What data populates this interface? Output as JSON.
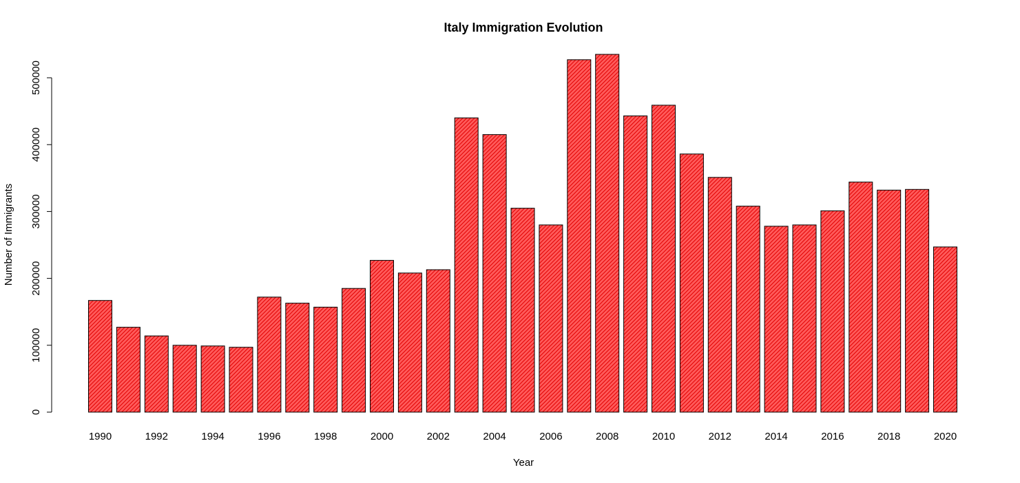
{
  "chart_data": {
    "type": "bar",
    "title": "Italy Immigration Evolution",
    "xlabel": "Year",
    "ylabel": "Number of Immigrants",
    "ylim": [
      0,
      535000
    ],
    "y_ticks": [
      "0",
      "100000",
      "200000",
      "300000",
      "400000",
      "500000"
    ],
    "y_tick_values": [
      0,
      100000,
      200000,
      300000,
      400000,
      500000
    ],
    "x_tick_labels": [
      "1990",
      "1992",
      "1994",
      "1996",
      "1998",
      "2000",
      "2002",
      "2004",
      "2006",
      "2008",
      "2010",
      "2012",
      "2014",
      "2016",
      "2018",
      "2020"
    ],
    "categories": [
      "1990",
      "1991",
      "1992",
      "1993",
      "1994",
      "1995",
      "1996",
      "1997",
      "1998",
      "1999",
      "2000",
      "2001",
      "2002",
      "2003",
      "2004",
      "2005",
      "2006",
      "2007",
      "2008",
      "2009",
      "2010",
      "2011",
      "2012",
      "2013",
      "2014",
      "2015",
      "2016",
      "2017",
      "2018",
      "2019",
      "2020"
    ],
    "values": [
      167000,
      127000,
      114000,
      100000,
      99000,
      97000,
      172000,
      163000,
      157000,
      185000,
      227000,
      208000,
      213000,
      440000,
      415000,
      305000,
      280000,
      527000,
      535000,
      443000,
      459000,
      386000,
      351000,
      308000,
      278000,
      280000,
      301000,
      344000,
      332000,
      333000,
      247000
    ],
    "grid": false,
    "legend": "none",
    "colors": {
      "bar_fill": "#ff5a5a",
      "bar_hatch": "#e00000",
      "bar_edge": "#000000",
      "axis": "#000000",
      "text": "#000000",
      "background": "#ffffff"
    }
  }
}
